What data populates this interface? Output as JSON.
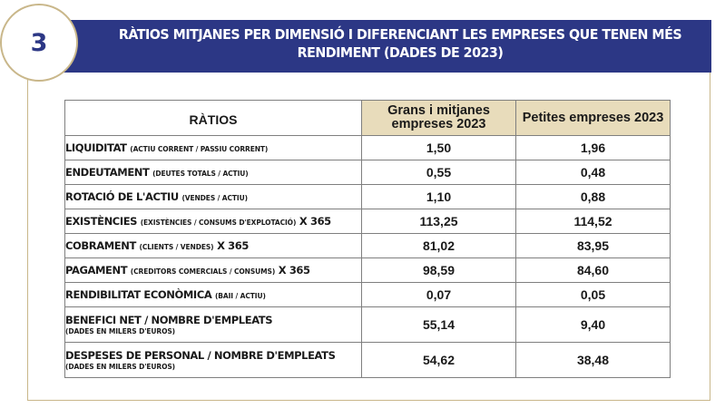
{
  "section_number": "3",
  "title": "RÀTIOS MITJANES PER DIMENSIÓ I DIFERENCIANT LES EMPRESES QUE TENEN MÉS RENDIMENT (DADES DE 2023)",
  "table": {
    "row_header": "RÀTIOS",
    "columns": [
      "Grans i mitjanes empreses 2023",
      "Petites empreses 2023"
    ],
    "rows": [
      {
        "name": "LIQUIDITAT",
        "sub": "(ACTIU CORRENT / PASSIU CORRENT)",
        "suffix": "",
        "note": "",
        "v1": "1,50",
        "v2": "1,96"
      },
      {
        "name": "ENDEUTAMENT",
        "sub": "(DEUTES TOTALS / ACTIU)",
        "suffix": "",
        "note": "",
        "v1": "0,55",
        "v2": "0,48"
      },
      {
        "name": "ROTACIÓ DE L'ACTIU",
        "sub": "(VENDES / ACTIU)",
        "suffix": "",
        "note": "",
        "v1": "1,10",
        "v2": "0,88"
      },
      {
        "name": "EXISTÈNCIES",
        "sub": "(EXISTÈNCIES / CONSUMS D'EXPLOTACIÓ)",
        "suffix": "X 365",
        "note": "",
        "v1": "113,25",
        "v2": "114,52"
      },
      {
        "name": "COBRAMENT",
        "sub": "(CLIENTS / VENDES)",
        "suffix": "X 365",
        "note": "",
        "v1": "81,02",
        "v2": "83,95"
      },
      {
        "name": "PAGAMENT",
        "sub": "(CREDITORS COMERCIALS / CONSUMS)",
        "suffix": "X 365",
        "note": "",
        "v1": "98,59",
        "v2": "84,60"
      },
      {
        "name": "RENDIBILITAT ECONÒMICA",
        "sub": "(BAII / ACTIU)",
        "suffix": "",
        "note": "",
        "v1": "0,07",
        "v2": "0,05"
      },
      {
        "name": "BENEFICI NET / NOMBRE D'EMPLEATS",
        "sub": "",
        "suffix": "",
        "note": "(DADES EN MILERS D'EUROS)",
        "v1": "55,14",
        "v2": "9,40"
      },
      {
        "name": "DESPESES DE PERSONAL / NOMBRE D'EMPLEATS",
        "sub": "",
        "suffix": "",
        "note": "(DADES EN MILERS D'EUROS)",
        "v1": "54,62",
        "v2": "38,48"
      }
    ]
  }
}
